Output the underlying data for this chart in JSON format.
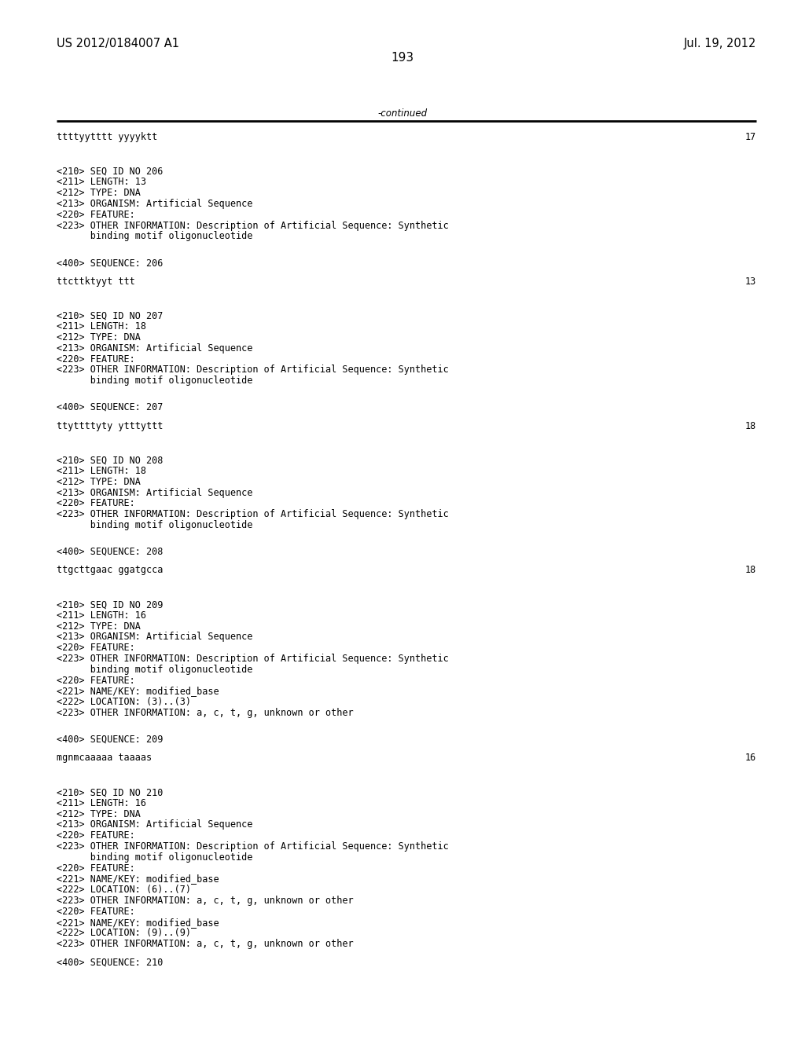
{
  "header_left": "US 2012/0184007 A1",
  "header_right": "Jul. 19, 2012",
  "page_number": "193",
  "continued_text": "-continued",
  "background_color": "#ffffff",
  "text_color": "#000000",
  "font_size_header": 10.5,
  "font_size_body": 8.5,
  "font_size_page": 11.0,
  "content_lines": [
    {
      "text": "ttttyytttt yyyyktt",
      "right_num": "17",
      "style": "mono"
    },
    {
      "text": "",
      "style": "blank"
    },
    {
      "text": "",
      "style": "blank"
    },
    {
      "text": "",
      "style": "blank"
    },
    {
      "text": "<210> SEQ ID NO 206",
      "style": "mono"
    },
    {
      "text": "<211> LENGTH: 13",
      "style": "mono"
    },
    {
      "text": "<212> TYPE: DNA",
      "style": "mono"
    },
    {
      "text": "<213> ORGANISM: Artificial Sequence",
      "style": "mono"
    },
    {
      "text": "<220> FEATURE:",
      "style": "mono"
    },
    {
      "text": "<223> OTHER INFORMATION: Description of Artificial Sequence: Synthetic",
      "style": "mono"
    },
    {
      "text": "      binding motif oligonucleotide",
      "style": "mono"
    },
    {
      "text": "",
      "style": "blank"
    },
    {
      "text": "",
      "style": "blank"
    },
    {
      "text": "<400> SEQUENCE: 206",
      "style": "mono"
    },
    {
      "text": "",
      "style": "blank"
    },
    {
      "text": "ttcttktyyt ttt",
      "right_num": "13",
      "style": "mono"
    },
    {
      "text": "",
      "style": "blank"
    },
    {
      "text": "",
      "style": "blank"
    },
    {
      "text": "",
      "style": "blank"
    },
    {
      "text": "<210> SEQ ID NO 207",
      "style": "mono"
    },
    {
      "text": "<211> LENGTH: 18",
      "style": "mono"
    },
    {
      "text": "<212> TYPE: DNA",
      "style": "mono"
    },
    {
      "text": "<213> ORGANISM: Artificial Sequence",
      "style": "mono"
    },
    {
      "text": "<220> FEATURE:",
      "style": "mono"
    },
    {
      "text": "<223> OTHER INFORMATION: Description of Artificial Sequence: Synthetic",
      "style": "mono"
    },
    {
      "text": "      binding motif oligonucleotide",
      "style": "mono"
    },
    {
      "text": "",
      "style": "blank"
    },
    {
      "text": "",
      "style": "blank"
    },
    {
      "text": "<400> SEQUENCE: 207",
      "style": "mono"
    },
    {
      "text": "",
      "style": "blank"
    },
    {
      "text": "ttyttttyty ytttyttt",
      "right_num": "18",
      "style": "mono"
    },
    {
      "text": "",
      "style": "blank"
    },
    {
      "text": "",
      "style": "blank"
    },
    {
      "text": "",
      "style": "blank"
    },
    {
      "text": "<210> SEQ ID NO 208",
      "style": "mono"
    },
    {
      "text": "<211> LENGTH: 18",
      "style": "mono"
    },
    {
      "text": "<212> TYPE: DNA",
      "style": "mono"
    },
    {
      "text": "<213> ORGANISM: Artificial Sequence",
      "style": "mono"
    },
    {
      "text": "<220> FEATURE:",
      "style": "mono"
    },
    {
      "text": "<223> OTHER INFORMATION: Description of Artificial Sequence: Synthetic",
      "style": "mono"
    },
    {
      "text": "      binding motif oligonucleotide",
      "style": "mono"
    },
    {
      "text": "",
      "style": "blank"
    },
    {
      "text": "",
      "style": "blank"
    },
    {
      "text": "<400> SEQUENCE: 208",
      "style": "mono"
    },
    {
      "text": "",
      "style": "blank"
    },
    {
      "text": "ttgcttgaac ggatgcca",
      "right_num": "18",
      "style": "mono"
    },
    {
      "text": "",
      "style": "blank"
    },
    {
      "text": "",
      "style": "blank"
    },
    {
      "text": "",
      "style": "blank"
    },
    {
      "text": "<210> SEQ ID NO 209",
      "style": "mono"
    },
    {
      "text": "<211> LENGTH: 16",
      "style": "mono"
    },
    {
      "text": "<212> TYPE: DNA",
      "style": "mono"
    },
    {
      "text": "<213> ORGANISM: Artificial Sequence",
      "style": "mono"
    },
    {
      "text": "<220> FEATURE:",
      "style": "mono"
    },
    {
      "text": "<223> OTHER INFORMATION: Description of Artificial Sequence: Synthetic",
      "style": "mono"
    },
    {
      "text": "      binding motif oligonucleotide",
      "style": "mono"
    },
    {
      "text": "<220> FEATURE:",
      "style": "mono"
    },
    {
      "text": "<221> NAME/KEY: modified_base",
      "style": "mono"
    },
    {
      "text": "<222> LOCATION: (3)..(3)",
      "style": "mono"
    },
    {
      "text": "<223> OTHER INFORMATION: a, c, t, g, unknown or other",
      "style": "mono"
    },
    {
      "text": "",
      "style": "blank"
    },
    {
      "text": "",
      "style": "blank"
    },
    {
      "text": "<400> SEQUENCE: 209",
      "style": "mono"
    },
    {
      "text": "",
      "style": "blank"
    },
    {
      "text": "mgnmcaaaaa taaaas",
      "right_num": "16",
      "style": "mono"
    },
    {
      "text": "",
      "style": "blank"
    },
    {
      "text": "",
      "style": "blank"
    },
    {
      "text": "",
      "style": "blank"
    },
    {
      "text": "<210> SEQ ID NO 210",
      "style": "mono"
    },
    {
      "text": "<211> LENGTH: 16",
      "style": "mono"
    },
    {
      "text": "<212> TYPE: DNA",
      "style": "mono"
    },
    {
      "text": "<213> ORGANISM: Artificial Sequence",
      "style": "mono"
    },
    {
      "text": "<220> FEATURE:",
      "style": "mono"
    },
    {
      "text": "<223> OTHER INFORMATION: Description of Artificial Sequence: Synthetic",
      "style": "mono"
    },
    {
      "text": "      binding motif oligonucleotide",
      "style": "mono"
    },
    {
      "text": "<220> FEATURE:",
      "style": "mono"
    },
    {
      "text": "<221> NAME/KEY: modified_base",
      "style": "mono"
    },
    {
      "text": "<222> LOCATION: (6)..(7)",
      "style": "mono"
    },
    {
      "text": "<223> OTHER INFORMATION: a, c, t, g, unknown or other",
      "style": "mono"
    },
    {
      "text": "<220> FEATURE:",
      "style": "mono"
    },
    {
      "text": "<221> NAME/KEY: modified_base",
      "style": "mono"
    },
    {
      "text": "<222> LOCATION: (9)..(9)",
      "style": "mono"
    },
    {
      "text": "<223> OTHER INFORMATION: a, c, t, g, unknown or other",
      "style": "mono"
    },
    {
      "text": "",
      "style": "blank"
    },
    {
      "text": "<400> SEQUENCE: 210",
      "style": "mono"
    }
  ]
}
